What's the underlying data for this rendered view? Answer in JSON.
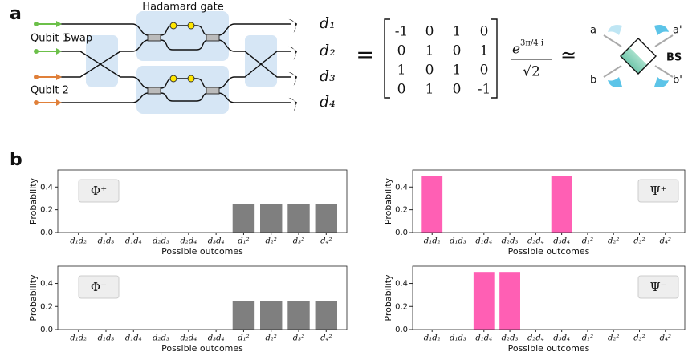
{
  "panel_labels": [
    "a",
    "b"
  ],
  "diagram": {
    "hadamard": "Hadamard gate",
    "qubit1": "Qubit 1",
    "qubit2": "Qubit 2",
    "swap": "Swap",
    "detectors": [
      "d₁",
      "d₂",
      "d₃",
      "d₄"
    ],
    "equals": "=",
    "matrix": [
      [
        -1,
        0,
        1,
        0
      ],
      [
        0,
        1,
        0,
        1
      ],
      [
        1,
        0,
        1,
        0
      ],
      [
        0,
        1,
        0,
        -1
      ]
    ],
    "factor_base": "e",
    "factor_exponent": "3π/4 i",
    "factor_denominator": "√2",
    "approx": "≃",
    "bs_ports": [
      "a",
      "a'",
      "b",
      "b'"
    ],
    "bs_label": "BS"
  },
  "chart_data": [
    {
      "type": "bar",
      "annotation": "Φ⁺",
      "annotation_loc": "upper left",
      "ylabel": "Probability",
      "xlabel": "Possible outcomes",
      "categories": [
        "d₁d₂",
        "d₁d₃",
        "d₁d₄",
        "d₂d₃",
        "d₂d₄",
        "d₃d₄",
        "d₁²",
        "d₂²",
        "d₃²",
        "d₄²"
      ],
      "values": [
        0,
        0,
        0,
        0,
        0,
        0,
        0.25,
        0.25,
        0.25,
        0.25
      ],
      "color": "#7f7f7f",
      "ylim": [
        0,
        0.55
      ],
      "yticks": [
        {
          "value": 0,
          "label": "0.0"
        },
        0.2,
        0.4
      ]
    },
    {
      "type": "bar",
      "annotation": "Ψ⁺",
      "annotation_loc": "upper right",
      "ylabel": "Probability",
      "xlabel": "Possible outcomes",
      "categories": [
        "d₁d₂",
        "d₁d₃",
        "d₁d₄",
        "d₂d₃",
        "d₂d₄",
        "d₃d₄",
        "d₁²",
        "d₂²",
        "d₃²",
        "d₄²"
      ],
      "values": [
        0.5,
        0,
        0,
        0,
        0,
        0.5,
        0,
        0,
        0,
        0
      ],
      "color": "#ff5fb4",
      "ylim": [
        0,
        0.55
      ],
      "yticks": [
        {
          "value": 0,
          "label": "0.0"
        },
        0.2,
        0.4
      ]
    },
    {
      "type": "bar",
      "annotation": "Φ⁻",
      "annotation_loc": "upper left",
      "ylabel": "Probability",
      "xlabel": "Possible outcomes",
      "categories": [
        "d₁d₂",
        "d₁d₃",
        "d₁d₄",
        "d₂d₃",
        "d₂d₄",
        "d₃d₄",
        "d₁²",
        "d₂²",
        "d₃²",
        "d₄²"
      ],
      "values": [
        0,
        0,
        0,
        0,
        0,
        0,
        0.25,
        0.25,
        0.25,
        0.25
      ],
      "color": "#7f7f7f",
      "ylim": [
        0,
        0.55
      ],
      "yticks": [
        {
          "value": 0,
          "label": "0.0"
        },
        0.2,
        0.4
      ]
    },
    {
      "type": "bar",
      "annotation": "Ψ⁻",
      "annotation_loc": "upper right",
      "ylabel": "Probability",
      "xlabel": "Possible outcomes",
      "categories": [
        "d₁d₂",
        "d₁d₃",
        "d₁d₄",
        "d₂d₃",
        "d₂d₄",
        "d₃d₄",
        "d₁²",
        "d₂²",
        "d₃²",
        "d₄²"
      ],
      "values": [
        0,
        0,
        0.5,
        0.5,
        0,
        0,
        0,
        0,
        0,
        0
      ],
      "color": "#ff5fb4",
      "ylim": [
        0,
        0.55
      ],
      "yticks": [
        {
          "value": 0,
          "label": "0.0"
        },
        0.2,
        0.4
      ]
    }
  ]
}
